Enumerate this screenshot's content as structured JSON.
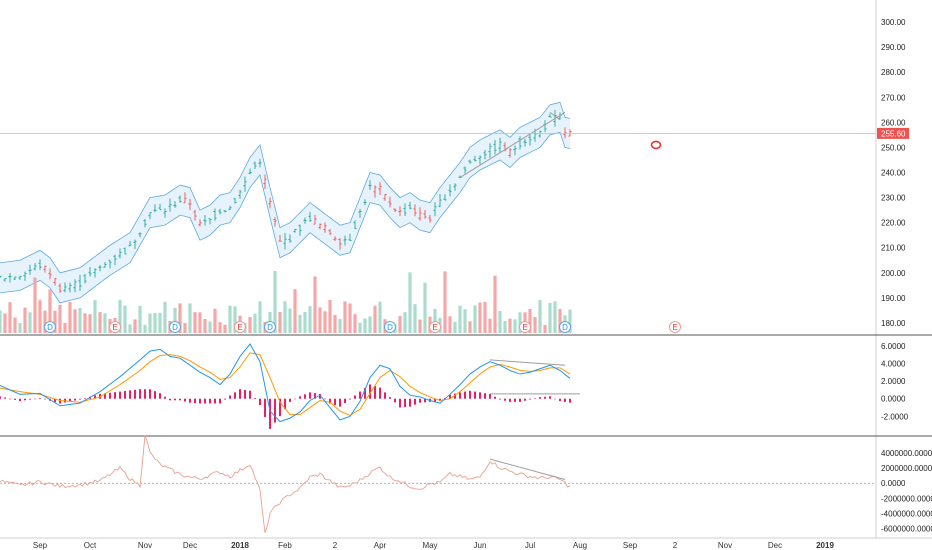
{
  "chart_data": [
    {
      "type": "candlestick",
      "panel": "price",
      "ylim": [
        176,
        308
      ],
      "yticks": [
        "300.00",
        "290.00",
        "280.00",
        "270.00",
        "260.00",
        "250.00",
        "240.00",
        "230.00",
        "220.00",
        "210.00",
        "200.00",
        "190.00",
        "180.00"
      ],
      "ytick_values": [
        300,
        290,
        280,
        270,
        260,
        250,
        240,
        230,
        220,
        210,
        200,
        190,
        180
      ],
      "last_price": "255.60",
      "last_price_value": 255.6,
      "colors": {
        "up": "#26a69a",
        "down": "#ef5350",
        "band_fill": "#dbeefb",
        "band_line": "#5fa8e0",
        "last_line": "#f6a5a5",
        "last_label": "#ef5350",
        "trend": "#9e9e9e",
        "volume_up": "#a9dccc",
        "volume_down": "#f5a6a6"
      },
      "price_path": [
        [
          0,
          198
        ],
        [
          4,
          199
        ],
        [
          8,
          203
        ],
        [
          10,
          200
        ],
        [
          12,
          194
        ],
        [
          16,
          196
        ],
        [
          20,
          202
        ],
        [
          22,
          205
        ],
        [
          26,
          210
        ],
        [
          30,
          224
        ],
        [
          33,
          225
        ],
        [
          36,
          229
        ],
        [
          38,
          228
        ],
        [
          40,
          219
        ],
        [
          42,
          221
        ],
        [
          44,
          225
        ],
        [
          46,
          226
        ],
        [
          48,
          232
        ],
        [
          50,
          240
        ],
        [
          52,
          245
        ],
        [
          54,
          228
        ],
        [
          56,
          212
        ],
        [
          58,
          214
        ],
        [
          60,
          218
        ],
        [
          62,
          222
        ],
        [
          64,
          219
        ],
        [
          66,
          216
        ],
        [
          68,
          213
        ],
        [
          70,
          214
        ],
        [
          72,
          224
        ],
        [
          74,
          234
        ],
        [
          76,
          233
        ],
        [
          78,
          228
        ],
        [
          80,
          224
        ],
        [
          82,
          226
        ],
        [
          84,
          223
        ],
        [
          86,
          222
        ],
        [
          88,
          228
        ],
        [
          90,
          233
        ],
        [
          92,
          238
        ],
        [
          94,
          244
        ],
        [
          96,
          247
        ],
        [
          98,
          249
        ],
        [
          100,
          251
        ],
        [
          102,
          248
        ],
        [
          104,
          252
        ],
        [
          106,
          254
        ],
        [
          108,
          256
        ],
        [
          110,
          261
        ],
        [
          112,
          262
        ],
        [
          113,
          256
        ],
        [
          114,
          255.6
        ]
      ],
      "events": {
        "d": [
          10,
          35,
          54,
          78,
          113
        ],
        "e": [
          23,
          48,
          87,
          105,
          135
        ],
        "d_label": "D",
        "e_label": "E"
      },
      "trendlines": [
        {
          "x1": 92,
          "y1": 238,
          "x2": 113,
          "y2": 264
        },
        {
          "x1": 110,
          "y1": 264,
          "x2": 112,
          "y2": 261
        }
      ]
    },
    {
      "type": "macd",
      "panel": "macd",
      "ylim": [
        -4,
        7
      ],
      "yticks": [
        "6.0000",
        "4.0000",
        "2.0000",
        "0.0000",
        "-2.0000"
      ],
      "ytick_values": [
        6,
        4,
        2,
        0,
        -2
      ],
      "colors": {
        "macd": "#2196f3",
        "signal": "#ff9800",
        "hist": "#e91e63",
        "trend": "#9e9e9e"
      },
      "macd": [
        [
          0,
          1.5
        ],
        [
          4,
          0.5
        ],
        [
          8,
          0.6
        ],
        [
          12,
          -0.8
        ],
        [
          16,
          -0.5
        ],
        [
          20,
          0.8
        ],
        [
          24,
          2.5
        ],
        [
          28,
          4.4
        ],
        [
          30,
          5.4
        ],
        [
          32,
          5.6
        ],
        [
          34,
          4.8
        ],
        [
          36,
          4.6
        ],
        [
          38,
          3.8
        ],
        [
          40,
          3.0
        ],
        [
          42,
          2.4
        ],
        [
          44,
          1.6
        ],
        [
          46,
          2.8
        ],
        [
          48,
          4.8
        ],
        [
          50,
          6.2
        ],
        [
          52,
          4.2
        ],
        [
          54,
          -1.4
        ],
        [
          56,
          -2.6
        ],
        [
          58,
          -2.2
        ],
        [
          60,
          -1.5
        ],
        [
          62,
          -0.2
        ],
        [
          64,
          0.4
        ],
        [
          66,
          -1.0
        ],
        [
          68,
          -2.4
        ],
        [
          70,
          -2.0
        ],
        [
          72,
          -0.3
        ],
        [
          74,
          2.4
        ],
        [
          76,
          3.8
        ],
        [
          78,
          3.4
        ],
        [
          80,
          1.4
        ],
        [
          82,
          0.4
        ],
        [
          84,
          0.2
        ],
        [
          86,
          -0.2
        ],
        [
          88,
          -0.5
        ],
        [
          90,
          0.5
        ],
        [
          92,
          1.6
        ],
        [
          94,
          2.8
        ],
        [
          96,
          3.6
        ],
        [
          98,
          4.2
        ],
        [
          100,
          3.8
        ],
        [
          102,
          3.2
        ],
        [
          104,
          2.8
        ],
        [
          106,
          3.0
        ],
        [
          108,
          3.4
        ],
        [
          110,
          3.8
        ],
        [
          112,
          3.2
        ],
        [
          114,
          2.3
        ]
      ],
      "signal": [
        [
          0,
          1.2
        ],
        [
          4,
          0.8
        ],
        [
          8,
          0.5
        ],
        [
          12,
          -0.2
        ],
        [
          16,
          -0.4
        ],
        [
          20,
          0.2
        ],
        [
          24,
          1.6
        ],
        [
          28,
          3.2
        ],
        [
          30,
          4.2
        ],
        [
          32,
          4.9
        ],
        [
          34,
          5.0
        ],
        [
          36,
          4.8
        ],
        [
          38,
          4.3
        ],
        [
          40,
          3.6
        ],
        [
          42,
          3.0
        ],
        [
          44,
          2.2
        ],
        [
          46,
          2.4
        ],
        [
          48,
          3.6
        ],
        [
          50,
          5.2
        ],
        [
          52,
          5.0
        ],
        [
          54,
          2.4
        ],
        [
          56,
          -0.4
        ],
        [
          58,
          -1.8
        ],
        [
          60,
          -1.8
        ],
        [
          62,
          -1.0
        ],
        [
          64,
          -0.2
        ],
        [
          66,
          -0.4
        ],
        [
          68,
          -1.4
        ],
        [
          70,
          -1.9
        ],
        [
          72,
          -1.2
        ],
        [
          74,
          0.6
        ],
        [
          76,
          2.4
        ],
        [
          78,
          3.2
        ],
        [
          80,
          2.5
        ],
        [
          82,
          1.4
        ],
        [
          84,
          0.7
        ],
        [
          86,
          0.2
        ],
        [
          88,
          -0.2
        ],
        [
          90,
          0.0
        ],
        [
          92,
          0.8
        ],
        [
          94,
          1.8
        ],
        [
          96,
          2.8
        ],
        [
          98,
          3.6
        ],
        [
          100,
          3.9
        ],
        [
          102,
          3.6
        ],
        [
          104,
          3.2
        ],
        [
          106,
          3.1
        ],
        [
          108,
          3.2
        ],
        [
          110,
          3.5
        ],
        [
          112,
          3.5
        ],
        [
          114,
          2.8
        ]
      ],
      "trendlines": [
        {
          "x1": 98,
          "y1": 4.4,
          "x2": 113,
          "y2": 3.8
        },
        {
          "x1": 98,
          "y1": 0.55,
          "x2": 116,
          "y2": 0.55
        }
      ]
    },
    {
      "type": "line",
      "panel": "volume-oscillator",
      "ylim": [
        -7000000,
        6000000
      ],
      "yticks": [
        "4000000.0000",
        "2000000.0000",
        "0.0000",
        "-2000000.0000",
        "-4000000.0000",
        "-6000000.0000"
      ],
      "ytick_values": [
        4000000,
        2000000,
        0,
        -2000000,
        -4000000,
        -6000000
      ],
      "colors": {
        "line": "#e8a090",
        "zero": "#999999",
        "trend": "#9e9e9e"
      },
      "values": [
        [
          0,
          300000
        ],
        [
          4,
          -300000
        ],
        [
          8,
          200000
        ],
        [
          12,
          -400000
        ],
        [
          16,
          -200000
        ],
        [
          20,
          300000
        ],
        [
          24,
          2000000
        ],
        [
          26,
          600000
        ],
        [
          28,
          -300000
        ],
        [
          29,
          6500000
        ],
        [
          30,
          4000000
        ],
        [
          32,
          2500000
        ],
        [
          34,
          1800000
        ],
        [
          36,
          1200000
        ],
        [
          38,
          800000
        ],
        [
          40,
          600000
        ],
        [
          42,
          1100000
        ],
        [
          44,
          1500000
        ],
        [
          46,
          900000
        ],
        [
          48,
          1700000
        ],
        [
          50,
          2600000
        ],
        [
          52,
          -1000000
        ],
        [
          53,
          -6800000
        ],
        [
          54,
          -4000000
        ],
        [
          56,
          -2500000
        ],
        [
          58,
          -1500000
        ],
        [
          60,
          -700000
        ],
        [
          62,
          800000
        ],
        [
          64,
          1200000
        ],
        [
          66,
          300000
        ],
        [
          68,
          -600000
        ],
        [
          70,
          -300000
        ],
        [
          72,
          400000
        ],
        [
          74,
          1400000
        ],
        [
          76,
          2100000
        ],
        [
          78,
          800000
        ],
        [
          80,
          300000
        ],
        [
          82,
          -400000
        ],
        [
          84,
          -700000
        ],
        [
          86,
          -100000
        ],
        [
          88,
          100000
        ],
        [
          90,
          1200000
        ],
        [
          92,
          900000
        ],
        [
          94,
          500000
        ],
        [
          96,
          800000
        ],
        [
          98,
          3000000
        ],
        [
          100,
          2100000
        ],
        [
          102,
          1600000
        ],
        [
          104,
          1200000
        ],
        [
          106,
          900000
        ],
        [
          108,
          700000
        ],
        [
          110,
          800000
        ],
        [
          112,
          500000
        ],
        [
          114,
          -500000
        ]
      ],
      "trendlines": [
        {
          "x1": 98,
          "y1": 3200000,
          "x2": 113,
          "y2": 500000
        }
      ]
    }
  ],
  "time_axis": {
    "labels": [
      "Sep",
      "Oct",
      "Nov",
      "Dec",
      "2018",
      "Feb",
      "2",
      "Apr",
      "May",
      "Jun",
      "Jul",
      "Aug",
      "Sep",
      "2",
      "Nov",
      "Dec",
      "2019"
    ],
    "bold": [
      false,
      false,
      false,
      false,
      true,
      false,
      false,
      false,
      false,
      false,
      false,
      false,
      false,
      false,
      false,
      false,
      true
    ],
    "index": [
      8,
      18,
      29,
      38,
      48,
      57,
      67,
      76,
      86,
      96,
      106,
      116,
      126,
      135,
      145,
      155,
      165
    ]
  }
}
